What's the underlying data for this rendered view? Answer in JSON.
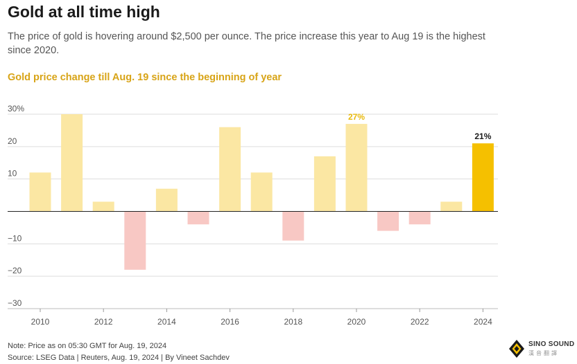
{
  "header": {
    "title": "Gold at all time high",
    "subtitle": "The price of gold is hovering around $2,500 per ounce. The price increase this year to Aug 19 is the highest since 2020."
  },
  "footer": {
    "note": "Note: Price as on 05:30 GMT for Aug. 19, 2024",
    "source": "Source: LSEG Data | Reuters, Aug. 19, 2024 | By Vineet Sachdev"
  },
  "logo": {
    "name": "SINO SOUND",
    "sub": "漢音翻譯"
  },
  "chart_data": {
    "type": "bar",
    "title": "Gold price change till Aug. 19 since the beginning of year",
    "xlabel": "",
    "ylabel": "",
    "ylim": [
      -30,
      30
    ],
    "yticks": [
      -30,
      -20,
      -10,
      0,
      10,
      20,
      30
    ],
    "ytick_labels": [
      "−30",
      "−20",
      "−10",
      "",
      "10",
      "20",
      "30%"
    ],
    "categories": [
      "2010",
      "2011",
      "2012",
      "2013",
      "2014",
      "2015",
      "2016",
      "2017",
      "2018",
      "2019",
      "2020",
      "2021",
      "2022",
      "2023",
      "2024"
    ],
    "xtick_labels": [
      "2010",
      "",
      "2012",
      "",
      "2014",
      "",
      "2016",
      "",
      "2018",
      "",
      "2020",
      "",
      "2022",
      "",
      "2024"
    ],
    "values": [
      12,
      30,
      3,
      -18,
      7,
      -4,
      26,
      12,
      -9,
      17,
      27,
      -6,
      -4,
      3,
      21
    ],
    "annotations": [
      {
        "category": "2020",
        "text": "27%"
      },
      {
        "category": "2024",
        "text": "21%"
      }
    ],
    "colors": {
      "positive": "#fbe7a3",
      "negative": "#f8c8c4",
      "highlight": "#f5c000",
      "annotation_2020": "#e8b90c",
      "annotation_2024": "#1a1a1a",
      "grid": "#dddddd",
      "axis": "#222222",
      "tick_label": "#555555"
    },
    "grid": true
  }
}
